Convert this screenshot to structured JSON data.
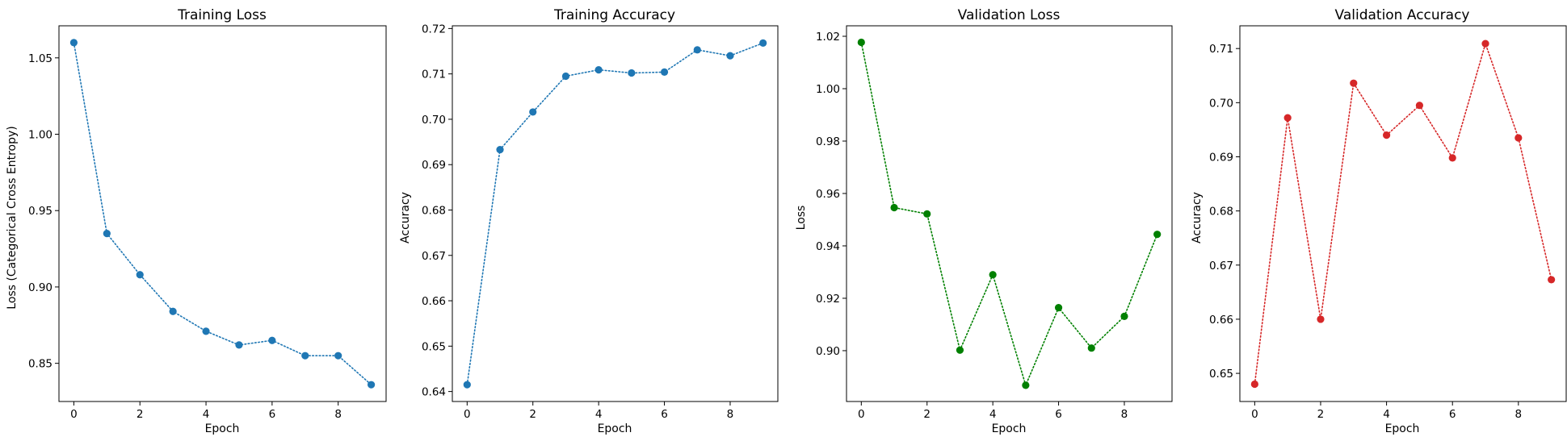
{
  "chart_data": [
    {
      "type": "line",
      "title": "Training Loss",
      "xlabel": "Epoch",
      "ylabel": "Loss (Categorical Cross Entropy)",
      "x": [
        0,
        1,
        2,
        3,
        4,
        5,
        6,
        7,
        8,
        9
      ],
      "series": [
        {
          "values": [
            1.06,
            0.935,
            0.908,
            0.884,
            0.871,
            0.862,
            0.865,
            0.855,
            0.855,
            0.836
          ],
          "color": "#1f77b4",
          "linestyle": "dotted",
          "marker": "circle"
        }
      ],
      "xlim": [
        -0.45,
        9.45
      ],
      "ylim": [
        0.825,
        1.071
      ],
      "xticks": [
        0,
        2,
        4,
        6,
        8
      ],
      "yticks": [
        0.85,
        0.9,
        0.95,
        1.0,
        1.05
      ],
      "ytick_labels": [
        "0.85",
        "0.90",
        "0.95",
        "1.00",
        "1.05"
      ],
      "grid": false,
      "legend": "none"
    },
    {
      "type": "line",
      "title": "Training Accuracy",
      "xlabel": "Epoch",
      "ylabel": "Accuracy",
      "x": [
        0,
        1,
        2,
        3,
        4,
        5,
        6,
        7,
        8,
        9
      ],
      "series": [
        {
          "values": [
            0.6415,
            0.6933,
            0.7016,
            0.7095,
            0.7109,
            0.7102,
            0.7104,
            0.7153,
            0.714,
            0.7168
          ],
          "color": "#1f77b4",
          "linestyle": "dotted",
          "marker": "circle"
        }
      ],
      "xlim": [
        -0.45,
        9.45
      ],
      "ylim": [
        0.6378,
        0.7206
      ],
      "xticks": [
        0,
        2,
        4,
        6,
        8
      ],
      "yticks": [
        0.64,
        0.65,
        0.66,
        0.67,
        0.68,
        0.69,
        0.7,
        0.71,
        0.72
      ],
      "ytick_labels": [
        "0.64",
        "0.65",
        "0.66",
        "0.67",
        "0.68",
        "0.69",
        "0.70",
        "0.71",
        "0.72"
      ],
      "grid": false,
      "legend": "none"
    },
    {
      "type": "line",
      "title": "Validation Loss",
      "xlabel": "Epoch",
      "ylabel": "Loss",
      "x": [
        0,
        1,
        2,
        3,
        4,
        5,
        6,
        7,
        8,
        9
      ],
      "series": [
        {
          "values": [
            1.0177,
            0.9546,
            0.9522,
            0.9002,
            0.929,
            0.8868,
            0.9164,
            0.901,
            0.9131,
            0.9444
          ],
          "color": "#008000",
          "linestyle": "dotted",
          "marker": "circle"
        }
      ],
      "xlim": [
        -0.45,
        9.45
      ],
      "ylim": [
        0.8806,
        1.024
      ],
      "xticks": [
        0,
        2,
        4,
        6,
        8
      ],
      "yticks": [
        0.9,
        0.92,
        0.94,
        0.96,
        0.98,
        1.0,
        1.02
      ],
      "ytick_labels": [
        "0.90",
        "0.92",
        "0.94",
        "0.96",
        "0.98",
        "1.00",
        "1.02"
      ],
      "grid": false,
      "legend": "none"
    },
    {
      "type": "line",
      "title": "Validation Accuracy",
      "xlabel": "Epoch",
      "ylabel": "Accuracy",
      "x": [
        0,
        1,
        2,
        3,
        4,
        5,
        6,
        7,
        8,
        9
      ],
      "series": [
        {
          "values": [
            0.648,
            0.6972,
            0.66,
            0.7036,
            0.694,
            0.6995,
            0.6898,
            0.7109,
            0.6935,
            0.6673
          ],
          "color": "#d62728",
          "linestyle": "dotted",
          "marker": "circle"
        }
      ],
      "xlim": [
        -0.45,
        9.45
      ],
      "ylim": [
        0.6448,
        0.7142
      ],
      "xticks": [
        0,
        2,
        4,
        6,
        8
      ],
      "yticks": [
        0.65,
        0.66,
        0.67,
        0.68,
        0.69,
        0.7,
        0.71
      ],
      "ytick_labels": [
        "0.65",
        "0.66",
        "0.67",
        "0.68",
        "0.69",
        "0.70",
        "0.71"
      ],
      "grid": false,
      "legend": "none"
    }
  ]
}
